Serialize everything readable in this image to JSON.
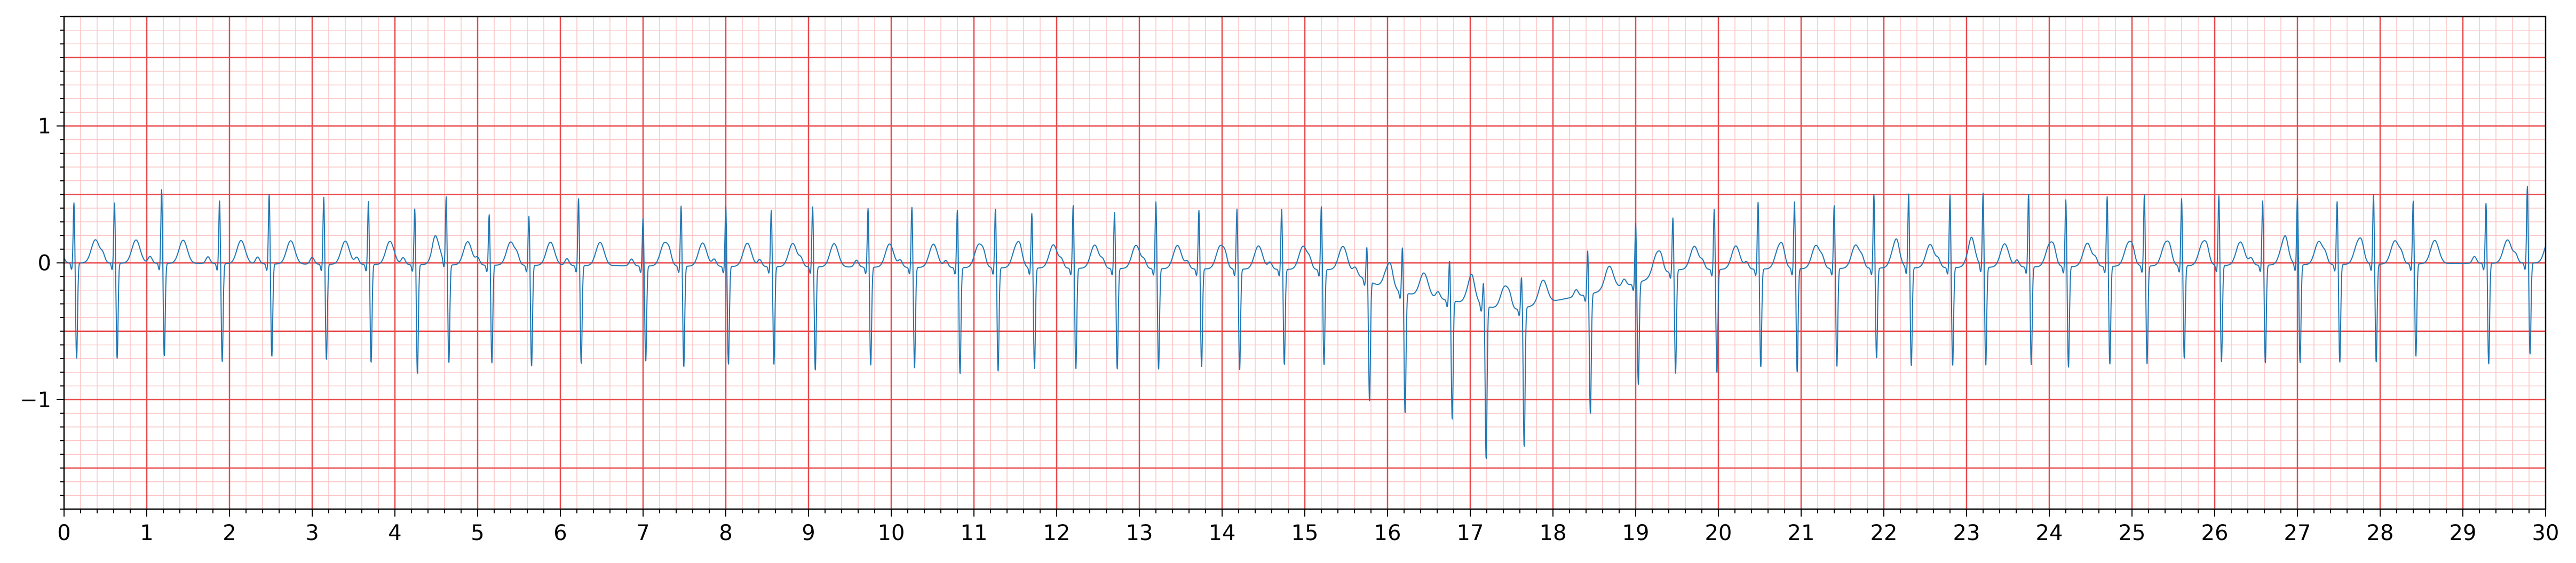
{
  "chart_data": {
    "type": "line",
    "title": "",
    "xlabel": "",
    "ylabel": "",
    "xlim": [
      0,
      30
    ],
    "ylim": [
      -1.8,
      1.8
    ],
    "grid": "ECG paper: major grid every 1 unit on x and 0.5 on y (red), minor grid every 0.2 on x and 0.1 on y (pink)",
    "x_ticks": [
      "0",
      "1",
      "2",
      "3",
      "4",
      "5",
      "6",
      "7",
      "8",
      "9",
      "10",
      "11",
      "12",
      "13",
      "14",
      "15",
      "16",
      "17",
      "18",
      "19",
      "20",
      "21",
      "22",
      "23",
      "24",
      "25",
      "26",
      "27",
      "28",
      "29",
      "30"
    ],
    "y_ticks": [
      "1",
      "0",
      "−1"
    ],
    "y_tick_values": [
      1,
      0,
      -1
    ],
    "colors": {
      "trace": "#1f77b4",
      "major_grid": "#e8494b",
      "minor_grid": "#fbc4c4",
      "axes": "#000000"
    },
    "series": [
      {
        "qrs_times": [
          0.12,
          0.61,
          1.18,
          1.88,
          2.48,
          3.14,
          3.68,
          4.24,
          4.62,
          5.14,
          5.62,
          6.22,
          7.0,
          7.46,
          8.0,
          8.55,
          9.05,
          9.72,
          10.25,
          10.8,
          11.26,
          11.7,
          12.2,
          12.7,
          13.2,
          13.72,
          14.18,
          14.72,
          15.2,
          15.75,
          16.18,
          16.75,
          17.16,
          17.62,
          18.42,
          19.0,
          19.45,
          19.95,
          20.48,
          20.92,
          21.4,
          21.88,
          22.3,
          22.8,
          23.2,
          23.75,
          24.2,
          24.7,
          25.15,
          25.6,
          26.05,
          26.58,
          27.0,
          27.48,
          27.92,
          28.4,
          29.28,
          29.78
        ],
        "r_amplitudes": [
          0.45,
          0.45,
          0.55,
          0.47,
          0.52,
          0.5,
          0.47,
          0.42,
          0.5,
          0.38,
          0.37,
          0.5,
          0.36,
          0.45,
          0.45,
          0.42,
          0.45,
          0.44,
          0.45,
          0.43,
          0.44,
          0.41,
          0.47,
          0.42,
          0.5,
          0.44,
          0.45,
          0.45,
          0.47,
          0.25,
          0.34,
          0.3,
          0.18,
          0.24,
          0.33,
          0.45,
          0.4,
          0.45,
          0.5,
          0.5,
          0.47,
          0.55,
          0.55,
          0.54,
          0.55,
          0.54,
          0.5,
          0.52,
          0.53,
          0.5,
          0.52,
          0.48,
          0.5,
          0.47,
          0.52,
          0.47,
          0.45,
          0.57
        ],
        "s_amplitudes": [
          -0.7,
          -0.7,
          -0.68,
          -0.72,
          -0.68,
          -0.7,
          -0.72,
          -0.8,
          -0.72,
          -0.72,
          -0.74,
          -0.72,
          -0.7,
          -0.74,
          -0.72,
          -0.72,
          -0.76,
          -0.72,
          -0.74,
          -0.78,
          -0.76,
          -0.74,
          -0.74,
          -0.74,
          -0.74,
          -0.72,
          -0.74,
          -0.7,
          -0.7,
          -0.88,
          -0.88,
          -0.87,
          -1.12,
          -1.02,
          -0.88,
          -0.75,
          -0.76,
          -0.76,
          -0.72,
          -0.76,
          -0.72,
          -0.66,
          -0.72,
          -0.72,
          -0.72,
          -0.72,
          -0.74,
          -0.72,
          -0.72,
          -0.68,
          -0.71,
          -0.72,
          -0.72,
          -0.72,
          -0.72,
          -0.68,
          -0.74,
          -0.67
        ],
        "baseline_times": [
          0,
          15.5,
          16.0,
          16.5,
          17.0,
          17.5,
          18.0,
          18.5,
          19.0,
          19.5,
          30
        ],
        "baseline_values": [
          0,
          -0.05,
          -0.2,
          -0.25,
          -0.3,
          -0.35,
          -0.28,
          -0.22,
          -0.15,
          -0.05,
          0
        ]
      }
    ]
  }
}
